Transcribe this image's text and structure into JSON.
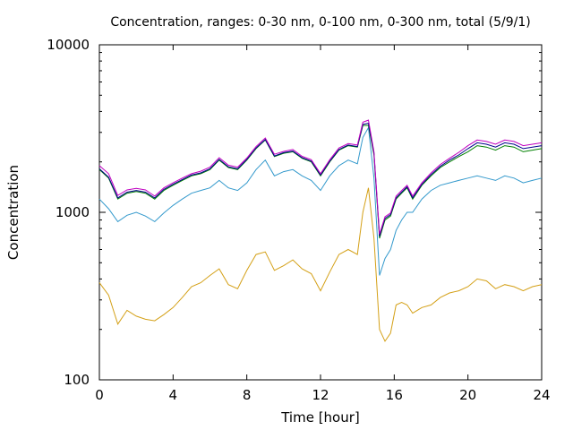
{
  "chart_data": {
    "type": "line",
    "title": "Concentration, ranges: 0-30 nm, 0-100 nm, 0-300 nm, total (5/9/1)",
    "xlabel": "Time [hour]",
    "ylabel": "Concentration",
    "xlim": [
      0,
      24
    ],
    "ylim": [
      100,
      10000
    ],
    "yscale": "log",
    "x_ticks": [
      0,
      4,
      8,
      12,
      16,
      20,
      24
    ],
    "x_tick_labels": [
      "0",
      "4",
      "8",
      "12",
      "16",
      "20",
      "24"
    ],
    "y_ticks": [
      100,
      1000,
      10000
    ],
    "y_tick_labels": [
      "100",
      "1000",
      "10000"
    ],
    "grid": false,
    "legend": "none",
    "x": [
      0,
      0.5,
      1,
      1.5,
      2,
      2.5,
      3,
      3.5,
      4,
      4.5,
      5,
      5.5,
      6,
      6.5,
      7,
      7.5,
      8,
      8.5,
      9,
      9.5,
      10,
      10.5,
      11,
      11.5,
      12,
      12.5,
      13,
      13.5,
      14,
      14.3,
      14.6,
      14.9,
      15.2,
      15.5,
      15.8,
      16.1,
      16.4,
      16.7,
      17,
      17.5,
      18,
      18.5,
      19,
      19.5,
      20,
      20.5,
      21,
      21.5,
      22,
      22.5,
      23,
      23.5,
      24
    ],
    "series": [
      {
        "color": "#d4a017",
        "values": [
          380,
          320,
          215,
          260,
          240,
          230,
          225,
          245,
          270,
          310,
          360,
          380,
          420,
          460,
          370,
          350,
          450,
          560,
          580,
          450,
          480,
          520,
          460,
          430,
          340,
          440,
          560,
          600,
          560,
          1000,
          1400,
          700,
          200,
          170,
          190,
          280,
          290,
          280,
          250,
          270,
          280,
          310,
          330,
          340,
          360,
          400,
          390,
          350,
          370,
          360,
          340,
          360,
          370
        ]
      },
      {
        "color": "#3399cc",
        "values": [
          1200,
          1050,
          880,
          960,
          1000,
          950,
          880,
          990,
          1100,
          1200,
          1300,
          1350,
          1400,
          1550,
          1400,
          1350,
          1500,
          1800,
          2050,
          1650,
          1750,
          1800,
          1650,
          1550,
          1350,
          1650,
          1900,
          2050,
          1950,
          2800,
          3200,
          1600,
          420,
          530,
          600,
          780,
          900,
          1000,
          1000,
          1200,
          1350,
          1450,
          1500,
          1550,
          1600,
          1650,
          1600,
          1550,
          1650,
          1600,
          1500,
          1550,
          1600
        ]
      },
      {
        "color": "#008000",
        "values": [
          1800,
          1600,
          1200,
          1300,
          1330,
          1300,
          1200,
          1350,
          1450,
          1550,
          1650,
          1700,
          1800,
          2050,
          1850,
          1800,
          2050,
          2400,
          2700,
          2150,
          2250,
          2300,
          2100,
          2000,
          1650,
          2000,
          2350,
          2500,
          2450,
          3300,
          3300,
          2200,
          700,
          900,
          950,
          1200,
          1300,
          1400,
          1200,
          1450,
          1650,
          1850,
          2000,
          2150,
          2300,
          2500,
          2450,
          2350,
          2500,
          2450,
          2300,
          2350,
          2400
        ]
      },
      {
        "color": "#00008b",
        "values": [
          1820,
          1620,
          1220,
          1320,
          1350,
          1320,
          1220,
          1370,
          1470,
          1570,
          1670,
          1720,
          1820,
          2070,
          1870,
          1820,
          2070,
          2420,
          2720,
          2170,
          2270,
          2320,
          2120,
          2020,
          1670,
          2020,
          2370,
          2520,
          2470,
          3350,
          3400,
          2250,
          720,
          920,
          970,
          1220,
          1320,
          1420,
          1220,
          1470,
          1680,
          1880,
          2050,
          2200,
          2400,
          2600,
          2550,
          2450,
          2600,
          2550,
          2400,
          2450,
          2500
        ]
      },
      {
        "color": "#c000c0",
        "values": [
          1900,
          1700,
          1260,
          1360,
          1390,
          1360,
          1250,
          1400,
          1500,
          1600,
          1700,
          1760,
          1860,
          2120,
          1910,
          1860,
          2110,
          2470,
          2780,
          2220,
          2310,
          2370,
          2160,
          2060,
          1700,
          2060,
          2420,
          2570,
          2520,
          3450,
          3550,
          2300,
          740,
          940,
          990,
          1250,
          1350,
          1450,
          1250,
          1500,
          1720,
          1930,
          2100,
          2280,
          2500,
          2700,
          2650,
          2550,
          2700,
          2650,
          2500,
          2550,
          2600
        ]
      }
    ]
  }
}
